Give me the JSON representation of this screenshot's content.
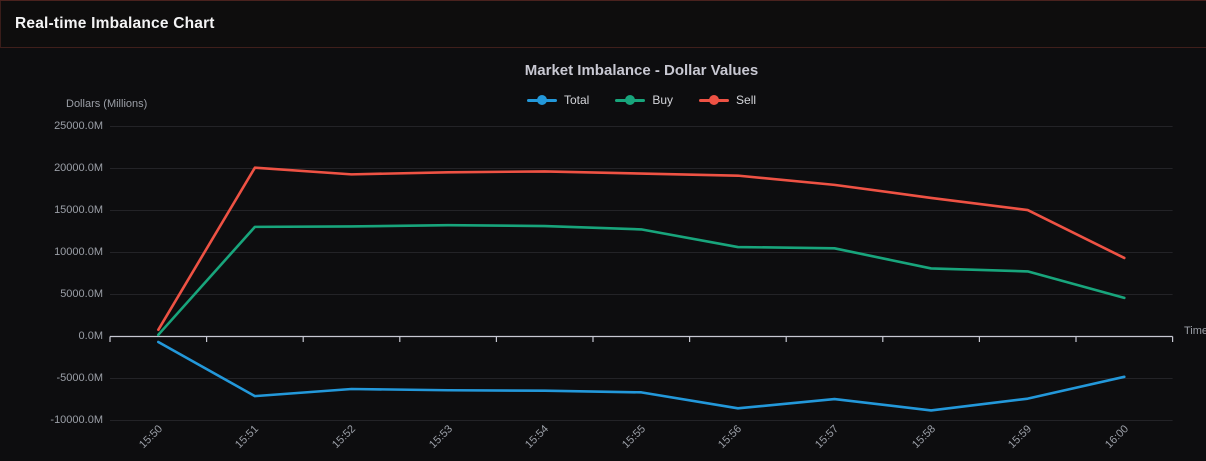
{
  "window": {
    "title": "Real-time Imbalance Chart"
  },
  "chart_data": {
    "type": "line",
    "title": "Market Imbalance - Dollar Values",
    "y_axis_label": "Dollars (Millions)",
    "x_axis_label": "Time",
    "legend_position": "top",
    "grid": "horizontal",
    "ylim": [
      -10000,
      25000
    ],
    "y_tick_step": 5000,
    "y_ticks": [
      {
        "value": 25000,
        "label": "25000.0M"
      },
      {
        "value": 20000,
        "label": "20000.0M"
      },
      {
        "value": 15000,
        "label": "15000.0M"
      },
      {
        "value": 10000,
        "label": "10000.0M"
      },
      {
        "value": 5000,
        "label": "5000.0M"
      },
      {
        "value": 0,
        "label": "0.0M"
      },
      {
        "value": -5000,
        "label": "-5000.0M"
      },
      {
        "value": -10000,
        "label": "-10000.0M"
      }
    ],
    "categories": [
      "15:50",
      "15:51",
      "15:52",
      "15:53",
      "15:54",
      "15:55",
      "15:56",
      "15:57",
      "15:58",
      "15:59",
      "16:00"
    ],
    "series": [
      {
        "name": "Total",
        "color": "#2398da",
        "values": [
          -650,
          -7100,
          -6250,
          -6400,
          -6450,
          -6650,
          -8550,
          -7450,
          -8800,
          -7400,
          -4800
        ]
      },
      {
        "name": "Buy",
        "color": "#18a57c",
        "values": [
          200,
          13050,
          13100,
          13250,
          13150,
          12750,
          10650,
          10500,
          8100,
          7750,
          4600
        ]
      },
      {
        "name": "Sell",
        "color": "#ee5244",
        "values": [
          800,
          20100,
          19300,
          19550,
          19650,
          19400,
          19150,
          18050,
          16500,
          15050,
          9350
        ]
      }
    ]
  },
  "colors": {
    "background": "#0d0d0f",
    "accent_border": "#4a221e",
    "grid_line": "#232327",
    "axis_line": "#c7c8d2",
    "axis_text": "#9b9fa7",
    "title_text": "#c8c8d2",
    "header_text": "#f4f4f5"
  }
}
